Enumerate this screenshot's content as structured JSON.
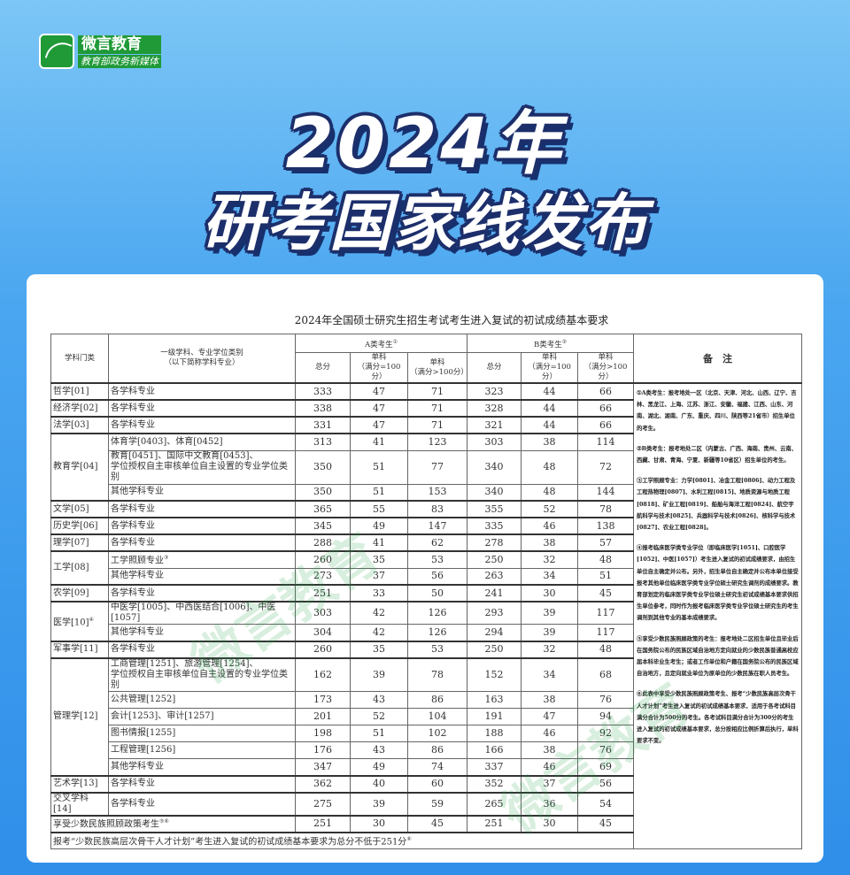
{
  "logo": {
    "name": "微言教育",
    "tagline": "教育部政务新媒体"
  },
  "headline": {
    "line1": "2024年",
    "line2": "研考国家线发布"
  },
  "watermark": "微言教育",
  "table": {
    "title": "2024年全国硕士研究生招生考试考生进入复试的初试成绩基本要求",
    "headers": {
      "category": "学科门类",
      "subject": "一级学科、专业学位类别",
      "subject_sub": "（以下简称学科专业）",
      "groupA": "A类考生",
      "groupA_sup": "①",
      "groupB": "B类考生",
      "groupB_sup": "②",
      "total": "总分",
      "single100": "单科",
      "single100_sub": "（满分=100分）",
      "singleGt100": "单科",
      "singleGt100_sub": "（满分>100分）",
      "notes": "备　注"
    },
    "rows": [
      {
        "cat": "哲学[01]",
        "span": 1,
        "subject": "各学科专业",
        "a": [
          "333",
          "47",
          "71"
        ],
        "b": [
          "323",
          "44",
          "66"
        ]
      },
      {
        "cat": "经济学[02]",
        "span": 1,
        "subject": "各学科专业",
        "a": [
          "338",
          "47",
          "71"
        ],
        "b": [
          "328",
          "44",
          "66"
        ]
      },
      {
        "cat": "法学[03]",
        "span": 1,
        "subject": "各学科专业",
        "a": [
          "331",
          "47",
          "71"
        ],
        "b": [
          "321",
          "44",
          "66"
        ]
      },
      {
        "cat": "教育学[04]",
        "span": 3,
        "subject": "体育学[0403]、体育[0452]",
        "a": [
          "313",
          "41",
          "123"
        ],
        "b": [
          "303",
          "38",
          "114"
        ]
      },
      {
        "subject": "教育[0451]、国际中文教育[0453]、\n学位授权自主审核单位自主设置的专业学位类别",
        "two": true,
        "a": [
          "350",
          "51",
          "77"
        ],
        "b": [
          "340",
          "48",
          "72"
        ]
      },
      {
        "subject": "其他学科专业",
        "a": [
          "350",
          "51",
          "153"
        ],
        "b": [
          "340",
          "48",
          "144"
        ]
      },
      {
        "cat": "文学[05]",
        "span": 1,
        "subject": "各学科专业",
        "a": [
          "365",
          "55",
          "83"
        ],
        "b": [
          "355",
          "52",
          "78"
        ]
      },
      {
        "cat": "历史学[06]",
        "span": 1,
        "subject": "各学科专业",
        "a": [
          "345",
          "49",
          "147"
        ],
        "b": [
          "335",
          "46",
          "138"
        ]
      },
      {
        "cat": "理学[07]",
        "span": 1,
        "subject": "各学科专业",
        "a": [
          "288",
          "41",
          "62"
        ],
        "b": [
          "278",
          "38",
          "57"
        ]
      },
      {
        "cat": "工学[08]",
        "span": 2,
        "subject": "工学照顾专业",
        "sup": "③",
        "a": [
          "260",
          "35",
          "53"
        ],
        "b": [
          "250",
          "32",
          "48"
        ]
      },
      {
        "subject": "其他学科专业",
        "a": [
          "273",
          "37",
          "56"
        ],
        "b": [
          "263",
          "34",
          "51"
        ]
      },
      {
        "cat": "农学[09]",
        "span": 1,
        "subject": "各学科专业",
        "a": [
          "251",
          "33",
          "50"
        ],
        "b": [
          "241",
          "30",
          "45"
        ]
      },
      {
        "cat": "医学[10]",
        "catsup": "④",
        "span": 2,
        "subject": "中医学[1005]、中西医结合[1006]、中医[1057]",
        "a": [
          "303",
          "42",
          "126"
        ],
        "b": [
          "293",
          "39",
          "117"
        ]
      },
      {
        "subject": "其他学科专业",
        "a": [
          "304",
          "42",
          "126"
        ],
        "b": [
          "294",
          "39",
          "117"
        ]
      },
      {
        "cat": "军事学[11]",
        "span": 1,
        "subject": "各学科专业",
        "a": [
          "260",
          "35",
          "53"
        ],
        "b": [
          "250",
          "32",
          "48"
        ]
      },
      {
        "cat": "管理学[12]",
        "span": 6,
        "subject": "工商管理[1251]、旅游管理[1254]、\n学位授权自主审核单位自主设置的专业学位类别",
        "two": true,
        "a": [
          "162",
          "39",
          "78"
        ],
        "b": [
          "152",
          "34",
          "68"
        ]
      },
      {
        "subject": "公共管理[1252]",
        "a": [
          "173",
          "43",
          "86"
        ],
        "b": [
          "163",
          "38",
          "76"
        ]
      },
      {
        "subject": "会计[1253]、审计[1257]",
        "a": [
          "201",
          "52",
          "104"
        ],
        "b": [
          "191",
          "47",
          "94"
        ]
      },
      {
        "subject": "图书情报[1255]",
        "a": [
          "198",
          "51",
          "102"
        ],
        "b": [
          "188",
          "46",
          "92"
        ]
      },
      {
        "subject": "工程管理[1256]",
        "a": [
          "176",
          "43",
          "86"
        ],
        "b": [
          "166",
          "38",
          "76"
        ]
      },
      {
        "subject": "其他学科专业",
        "a": [
          "347",
          "49",
          "74"
        ],
        "b": [
          "337",
          "46",
          "69"
        ]
      },
      {
        "cat": "艺术学[13]",
        "span": 1,
        "subject": "各学科专业",
        "a": [
          "362",
          "40",
          "60"
        ],
        "b": [
          "352",
          "37",
          "56"
        ]
      },
      {
        "cat": "交叉学科[14]",
        "span": 1,
        "subject": "各学科专业",
        "a": [
          "275",
          "39",
          "59"
        ],
        "b": [
          "265",
          "36",
          "54"
        ]
      },
      {
        "merged": "享受少数民族照顾政策考生",
        "sup": "⑤⑥",
        "a": [
          "251",
          "30",
          "45"
        ],
        "b": [
          "251",
          "30",
          "45"
        ]
      }
    ],
    "footnote": "报考“少数民族高层次骨干人才计划”考生进入复试的初试成绩基本要求为总分不低于251分",
    "footnote_sup": "⑥",
    "notes": [
      "①A类考生：报考地处一区（北京、天津、河北、山西、辽宁、吉林、黑龙江、上海、江苏、浙江、安徽、福建、江西、山东、河南、湖北、湖南、广东、重庆、四川、陕西等21省市）招生单位的考生。",
      "②B类考生：报考地处二区（内蒙古、广西、海南、贵州、云南、西藏、甘肃、青海、宁夏、新疆等10省区）招生单位的考生。",
      "③工学照顾专业：力学[0801]、冶金工程[0806]、动力工程及工程热物理[0807]、水利工程[0815]、地质资源与地质工程[0818]、矿业工程[0819]、船舶与海洋工程[0824]、航空宇航科学与技术[0825]、兵器科学与技术[0826]、核科学与技术[0827]、农业工程[0828]。",
      "④报考临床医学类专业学位（即临床医学[1051]、口腔医学[1052]、中医[1057]）考生进入复试的初试成绩要求，由招生单位自主确定并公布。另外，招生单位自主确定并公布本单位接受报考其他单位临床医学类专业学位硕士研究生调剂的成绩要求。教育部划定的临床医学类专业学位硕士研究生初试成绩基本要求供招生单位参考，同时作为报考临床医学类专业学位硕士研究生的考生调剂到其他专业的基本成绩要求。",
      "⑤享受少数民族照顾政策的考生：报考地处二区招生单位且毕业后在国务院公布的民族区域自治地方定向就业的少数民族普通高校应届本科毕业生考生；或者工作单位和户籍在国务院公布的民族区域自治地方，且定向就业单位为原单位的少数民族在职人员考生。",
      "⑥此表中享受少数民族照顾政策考生、报考“少数民族高层次骨干人才计划”考生进入复试的初试成绩基本要求，适用于各考试科目满分合计为500分的考生。各考试科目满分合计为300分的考生进入复试的初试成绩基本要求，总分按相应比例折算后执行，单科要求不变。"
    ]
  }
}
